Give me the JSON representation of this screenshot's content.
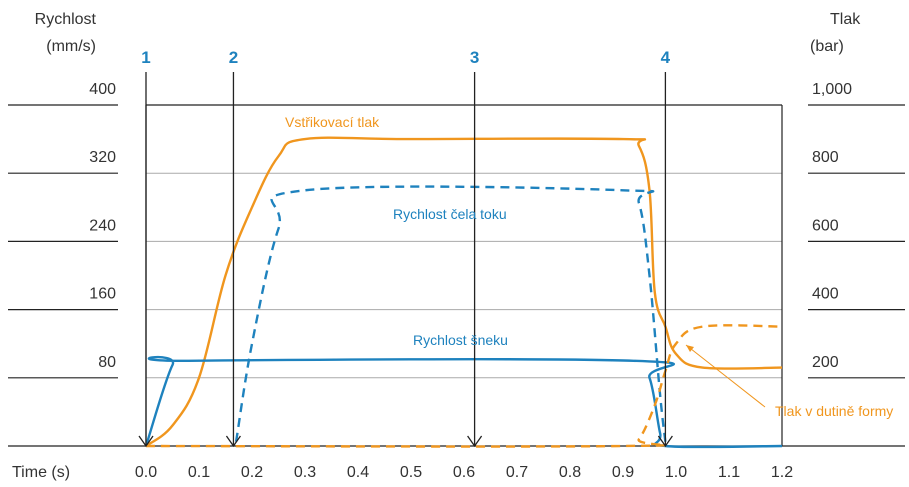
{
  "chart_data": {
    "type": "line",
    "xlabel": "Time (s)",
    "x_ticks": [
      "0.0",
      "0.1",
      "0.2",
      "0.3",
      "0.4",
      "0.5",
      "0.6",
      "0.7",
      "0.8",
      "0.9",
      "1.0",
      "1.1",
      "1.2"
    ],
    "xlim": [
      0,
      1.2
    ],
    "y_left": {
      "label_line1": "Rychlost",
      "label_line2": "(mm/s)",
      "ticks": [
        "400",
        "320",
        "240",
        "160",
        "80"
      ],
      "tick_values": [
        400,
        320,
        240,
        160,
        80
      ],
      "ylim": [
        0,
        400
      ]
    },
    "y_right": {
      "label_line1": "Tlak",
      "label_line2": "(bar)",
      "ticks": [
        "1,000",
        "800",
        "600",
        "400",
        "200"
      ],
      "tick_values": [
        1000,
        800,
        600,
        400,
        200
      ],
      "ylim": [
        0,
        1000
      ]
    },
    "grid": true,
    "phase_markers": [
      {
        "label": "1",
        "x": 0.0
      },
      {
        "label": "2",
        "x": 0.165
      },
      {
        "label": "3",
        "x": 0.62
      },
      {
        "label": "4",
        "x": 0.98
      }
    ],
    "series": [
      {
        "name": "Vstřikovací tlak",
        "axis": "right",
        "color": "#f0961e",
        "style": "solid",
        "points": [
          [
            0.0,
            0
          ],
          [
            0.05,
            60
          ],
          [
            0.1,
            200
          ],
          [
            0.15,
            500
          ],
          [
            0.2,
            700
          ],
          [
            0.25,
            850
          ],
          [
            0.3,
            900
          ],
          [
            0.5,
            900
          ],
          [
            0.9,
            900
          ],
          [
            0.93,
            880
          ],
          [
            0.95,
            750
          ],
          [
            0.96,
            450
          ],
          [
            0.98,
            350
          ],
          [
            1.0,
            270
          ],
          [
            1.05,
            230
          ],
          [
            1.2,
            230
          ]
        ]
      },
      {
        "name": "Rychlost čela toku",
        "axis": "left",
        "color": "#1e82be",
        "style": "dashed",
        "points": [
          [
            0.17,
            5
          ],
          [
            0.2,
            120
          ],
          [
            0.25,
            255
          ],
          [
            0.3,
            300
          ],
          [
            0.9,
            300
          ],
          [
            0.93,
            285
          ],
          [
            0.95,
            200
          ],
          [
            0.97,
            60
          ],
          [
            0.98,
            5
          ]
        ]
      },
      {
        "name": "Rychlost šneku",
        "axis": "left",
        "color": "#1e82be",
        "style": "solid",
        "points": [
          [
            0.0,
            0
          ],
          [
            0.05,
            95
          ],
          [
            0.08,
            100
          ],
          [
            0.92,
            100
          ],
          [
            0.95,
            80
          ],
          [
            0.97,
            15
          ],
          [
            0.98,
            0
          ],
          [
            1.2,
            0
          ]
        ]
      },
      {
        "name": "Tlak v dutině formy",
        "axis": "right",
        "color": "#f0961e",
        "style": "dashed",
        "points": [
          [
            0.0,
            0
          ],
          [
            0.9,
            0
          ],
          [
            0.93,
            20
          ],
          [
            0.96,
            120
          ],
          [
            0.98,
            220
          ],
          [
            1.0,
            300
          ],
          [
            1.05,
            350
          ],
          [
            1.2,
            350
          ]
        ]
      }
    ],
    "annotations": [
      "Vstřikovací tlak",
      "Rychlost čela toku",
      "Rychlost šneku",
      "Tlak v dutině formy"
    ]
  }
}
